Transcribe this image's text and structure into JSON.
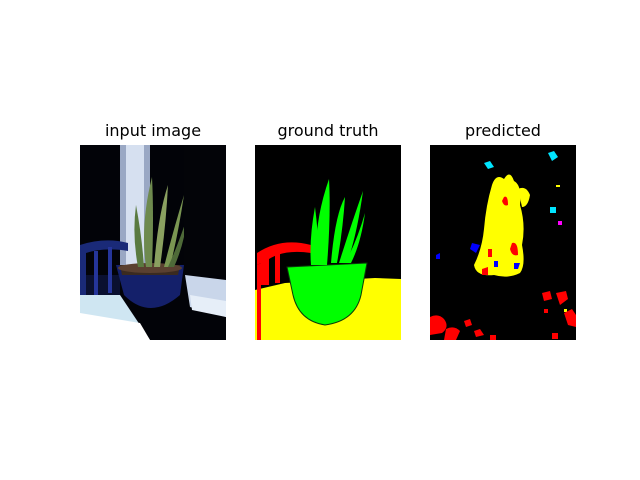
{
  "panels": [
    {
      "title": "input image"
    },
    {
      "title": "ground truth"
    },
    {
      "title": "predicted"
    }
  ],
  "colors": {
    "background": "#000000",
    "plant_class": "#00ff00",
    "table_class": "#ffff00",
    "chair_class": "#ff0000",
    "cyan_noise": "#00e5ff",
    "blue_noise": "#0000ff",
    "magenta_noise": "#ff00ff"
  }
}
